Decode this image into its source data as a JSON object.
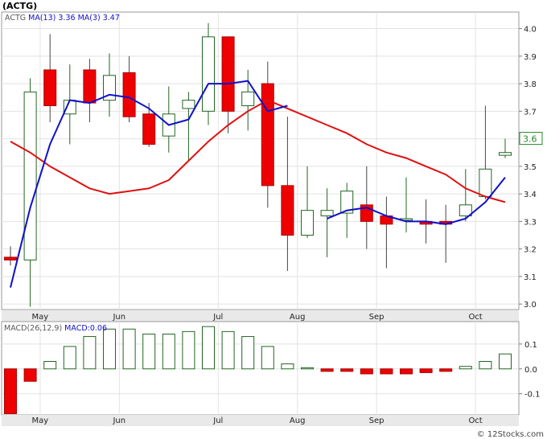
{
  "chart_data": [
    {
      "type": "candlestick",
      "symbol": "(ACTG)",
      "legend": [
        {
          "label": "ACTG",
          "color": "#5a5a5a"
        },
        {
          "label": "MA(13)",
          "color": "#1010cc"
        },
        {
          "label": "3.36",
          "color": "#1010cc"
        },
        {
          "label": "MA(3)",
          "color": "#1010cc"
        },
        {
          "label": "3.47",
          "color": "#1010cc"
        }
      ],
      "last_price_label": "3.6",
      "ylim": [
        2.98,
        4.06
      ],
      "yticks": [
        "3.0",
        "3.1",
        "3.2",
        "3.3",
        "3.4",
        "3.5",
        "3.6",
        "3.7",
        "3.8",
        "3.9",
        "4.0"
      ],
      "ytick_values": [
        3.0,
        3.1,
        3.2,
        3.3,
        3.4,
        3.5,
        3.6,
        3.7,
        3.8,
        3.9,
        4.0
      ],
      "month_labels": [
        {
          "label": "May",
          "week": 1
        },
        {
          "label": "Jun",
          "week": 5
        },
        {
          "label": "Jul",
          "week": 10
        },
        {
          "label": "Aug",
          "week": 14
        },
        {
          "label": "Sep",
          "week": 18
        },
        {
          "label": "Oct",
          "week": 23
        }
      ],
      "candles": [
        {
          "o": 3.17,
          "h": 3.21,
          "l": 3.14,
          "c": 3.16
        },
        {
          "o": 3.16,
          "h": 3.82,
          "l": 2.99,
          "c": 3.77
        },
        {
          "o": 3.85,
          "h": 3.98,
          "l": 3.66,
          "c": 3.72
        },
        {
          "o": 3.69,
          "h": 3.87,
          "l": 3.58,
          "c": 3.74
        },
        {
          "o": 3.85,
          "h": 3.89,
          "l": 3.66,
          "c": 3.73
        },
        {
          "o": 3.74,
          "h": 3.91,
          "l": 3.68,
          "c": 3.83
        },
        {
          "o": 3.84,
          "h": 3.9,
          "l": 3.66,
          "c": 3.68
        },
        {
          "o": 3.69,
          "h": 3.73,
          "l": 3.57,
          "c": 3.58
        },
        {
          "o": 3.61,
          "h": 3.79,
          "l": 3.55,
          "c": 3.69
        },
        {
          "o": 3.71,
          "h": 3.77,
          "l": 3.52,
          "c": 3.74
        },
        {
          "o": 3.7,
          "h": 4.02,
          "l": 3.65,
          "c": 3.97
        },
        {
          "o": 3.97,
          "h": 3.97,
          "l": 3.62,
          "c": 3.7
        },
        {
          "o": 3.72,
          "h": 3.85,
          "l": 3.63,
          "c": 3.77
        },
        {
          "o": 3.8,
          "h": 3.88,
          "l": 3.35,
          "c": 3.43
        },
        {
          "o": 3.43,
          "h": 3.68,
          "l": 3.12,
          "c": 3.25
        },
        {
          "o": 3.25,
          "h": 3.5,
          "l": 3.24,
          "c": 3.34
        },
        {
          "o": 3.32,
          "h": 3.42,
          "l": 3.17,
          "c": 3.34
        },
        {
          "o": 3.33,
          "h": 3.44,
          "l": 3.24,
          "c": 3.41
        },
        {
          "o": 3.36,
          "h": 3.5,
          "l": 3.2,
          "c": 3.3
        },
        {
          "o": 3.32,
          "h": 3.39,
          "l": 3.13,
          "c": 3.29
        },
        {
          "o": 3.31,
          "h": 3.46,
          "l": 3.26,
          "c": 3.31
        },
        {
          "o": 3.3,
          "h": 3.38,
          "l": 3.22,
          "c": 3.29
        },
        {
          "o": 3.3,
          "h": 3.36,
          "l": 3.15,
          "c": 3.29
        },
        {
          "o": 3.32,
          "h": 3.49,
          "l": 3.3,
          "c": 3.36
        },
        {
          "o": 3.39,
          "h": 3.72,
          "l": 3.38,
          "c": 3.49
        },
        {
          "o": 3.54,
          "h": 3.6,
          "l": 3.53,
          "c": 3.55
        }
      ],
      "ma_fast": {
        "name": "MA(3)",
        "color": "#1010cc",
        "values": [
          3.06,
          3.35,
          3.58,
          3.74,
          3.73,
          3.76,
          3.75,
          3.71,
          3.65,
          3.67,
          3.8,
          3.8,
          3.81,
          3.7,
          3.72,
          null,
          3.31,
          3.34,
          3.35,
          3.32,
          3.3,
          3.3,
          3.29,
          3.31,
          3.37,
          3.46
        ]
      },
      "ma_slow": {
        "name": "MA(13)",
        "color": "#e01010",
        "values": [
          3.59,
          3.55,
          3.5,
          3.46,
          3.42,
          3.4,
          3.41,
          3.42,
          3.45,
          3.52,
          3.59,
          3.65,
          3.7,
          3.74,
          3.71,
          3.68,
          3.65,
          3.62,
          3.58,
          3.55,
          3.53,
          3.5,
          3.47,
          3.42,
          3.39,
          3.37
        ]
      }
    },
    {
      "type": "bar",
      "legend": [
        {
          "label": "MACD(26,12,9)",
          "color": "#5a5a5a"
        },
        {
          "label": "MACD:0.06",
          "color": "#1010cc"
        }
      ],
      "ylim": [
        -0.185,
        0.19
      ],
      "yticks": [
        "0.1",
        "0.0",
        "-0.1"
      ],
      "ytick_values": [
        0.1,
        0.0,
        -0.1
      ],
      "month_labels": [
        {
          "label": "May",
          "week": 1
        },
        {
          "label": "Jun",
          "week": 5
        },
        {
          "label": "Jul",
          "week": 10
        },
        {
          "label": "Aug",
          "week": 14
        },
        {
          "label": "Sep",
          "week": 18
        },
        {
          "label": "Oct",
          "week": 23
        }
      ],
      "values": [
        -0.18,
        -0.05,
        0.03,
        0.09,
        0.13,
        0.16,
        0.16,
        0.14,
        0.14,
        0.15,
        0.17,
        0.15,
        0.13,
        0.09,
        0.02,
        0.003,
        -0.01,
        -0.01,
        -0.02,
        -0.02,
        -0.02,
        -0.015,
        -0.01,
        0.01,
        0.03,
        0.06
      ]
    }
  ],
  "watermark": "© 12Stocks.com"
}
